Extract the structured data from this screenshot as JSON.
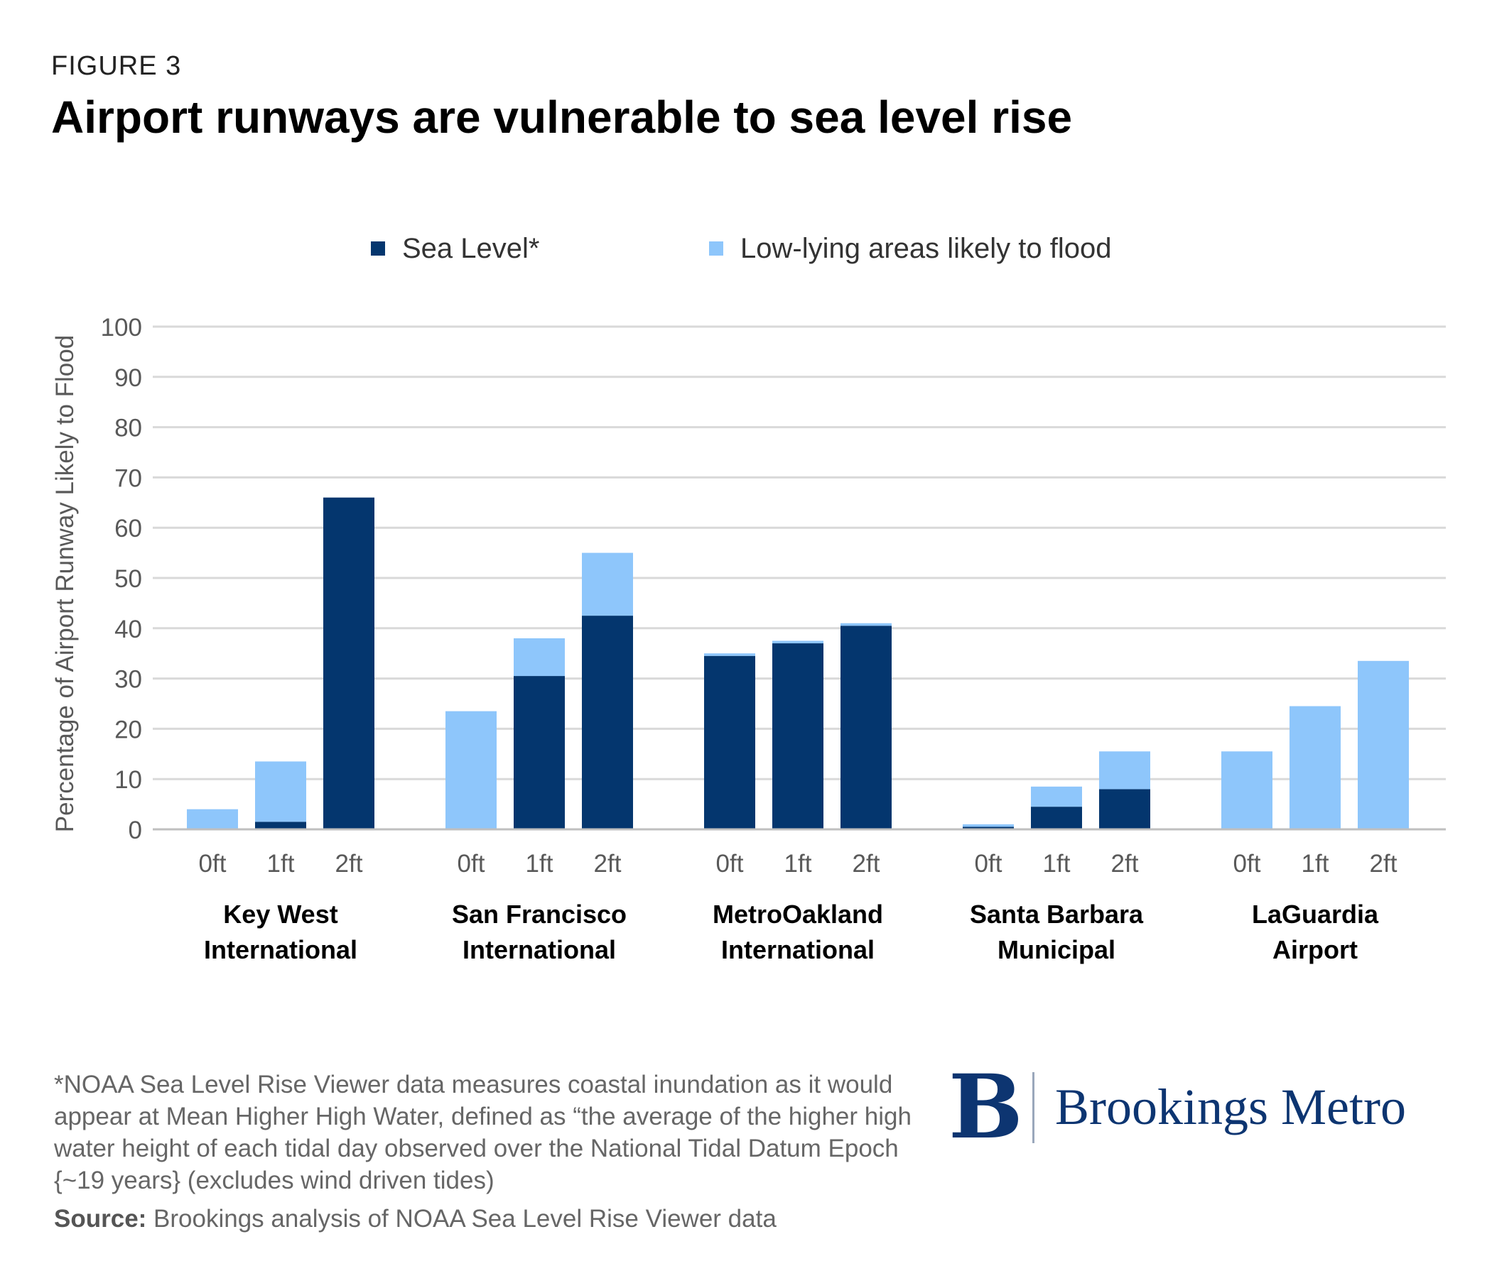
{
  "header": {
    "eyebrow": "FIGURE 3",
    "title": "Airport runways are vulnerable to sea level rise"
  },
  "colors": {
    "sea_level": "#04366e",
    "low_lying": "#8ec6fb",
    "grid": "#d9d9d9",
    "axis_text": "#595959",
    "brand": "#0d3571"
  },
  "chart_data": {
    "type": "bar",
    "stacked": true,
    "title": "Airport runways are vulnerable to sea level rise",
    "ylabel": "Percentage of Airport Runway Likely to Flood",
    "xlabel": "",
    "ylim": [
      0,
      100
    ],
    "yticks": [
      0,
      10,
      20,
      30,
      40,
      50,
      60,
      70,
      80,
      90,
      100
    ],
    "grid": true,
    "legend_position": "top",
    "series": [
      {
        "name": "Sea Level*",
        "color_key": "sea_level"
      },
      {
        "name": "Low-lying areas likely to flood",
        "color_key": "low_lying"
      }
    ],
    "groups": [
      {
        "name": [
          "Key West",
          "International"
        ],
        "bars": [
          {
            "label": "0ft",
            "sea_level": 0,
            "low_lying": 4
          },
          {
            "label": "1ft",
            "sea_level": 1.5,
            "low_lying": 12
          },
          {
            "label": "2ft",
            "sea_level": 66,
            "low_lying": 0
          }
        ]
      },
      {
        "name": [
          "San Francisco",
          "International"
        ],
        "bars": [
          {
            "label": "0ft",
            "sea_level": 0,
            "low_lying": 23.5
          },
          {
            "label": "1ft",
            "sea_level": 30.5,
            "low_lying": 7.5
          },
          {
            "label": "2ft",
            "sea_level": 42.5,
            "low_lying": 12.5
          }
        ]
      },
      {
        "name": [
          "MetroOakland",
          "International"
        ],
        "bars": [
          {
            "label": "0ft",
            "sea_level": 34.5,
            "low_lying": 0.5
          },
          {
            "label": "1ft",
            "sea_level": 37,
            "low_lying": 0.5
          },
          {
            "label": "2ft",
            "sea_level": 40.5,
            "low_lying": 0.5
          }
        ]
      },
      {
        "name": [
          "Santa Barbara",
          "Municipal"
        ],
        "bars": [
          {
            "label": "0ft",
            "sea_level": 0.5,
            "low_lying": 0.5
          },
          {
            "label": "1ft",
            "sea_level": 4.5,
            "low_lying": 4
          },
          {
            "label": "2ft",
            "sea_level": 8,
            "low_lying": 7.5
          }
        ]
      },
      {
        "name": [
          "LaGuardia",
          "Airport"
        ],
        "bars": [
          {
            "label": "0ft",
            "sea_level": 0,
            "low_lying": 15.5
          },
          {
            "label": "1ft",
            "sea_level": 0,
            "low_lying": 24.5
          },
          {
            "label": "2ft",
            "sea_level": 0,
            "low_lying": 33.5
          }
        ]
      }
    ]
  },
  "footer": {
    "footnote": "*NOAA Sea Level Rise Viewer data measures coastal inundation as it would appear at Mean Higher High Water, defined as “the average of the higher high water height of each tidal day observed over the National Tidal Datum Epoch {~19 years} (excludes wind driven tides)",
    "source_label": "Source:",
    "source_text": " Brookings analysis of NOAA Sea Level Rise Viewer data"
  },
  "logo": {
    "letter": "B",
    "text": "Brookings Metro"
  }
}
